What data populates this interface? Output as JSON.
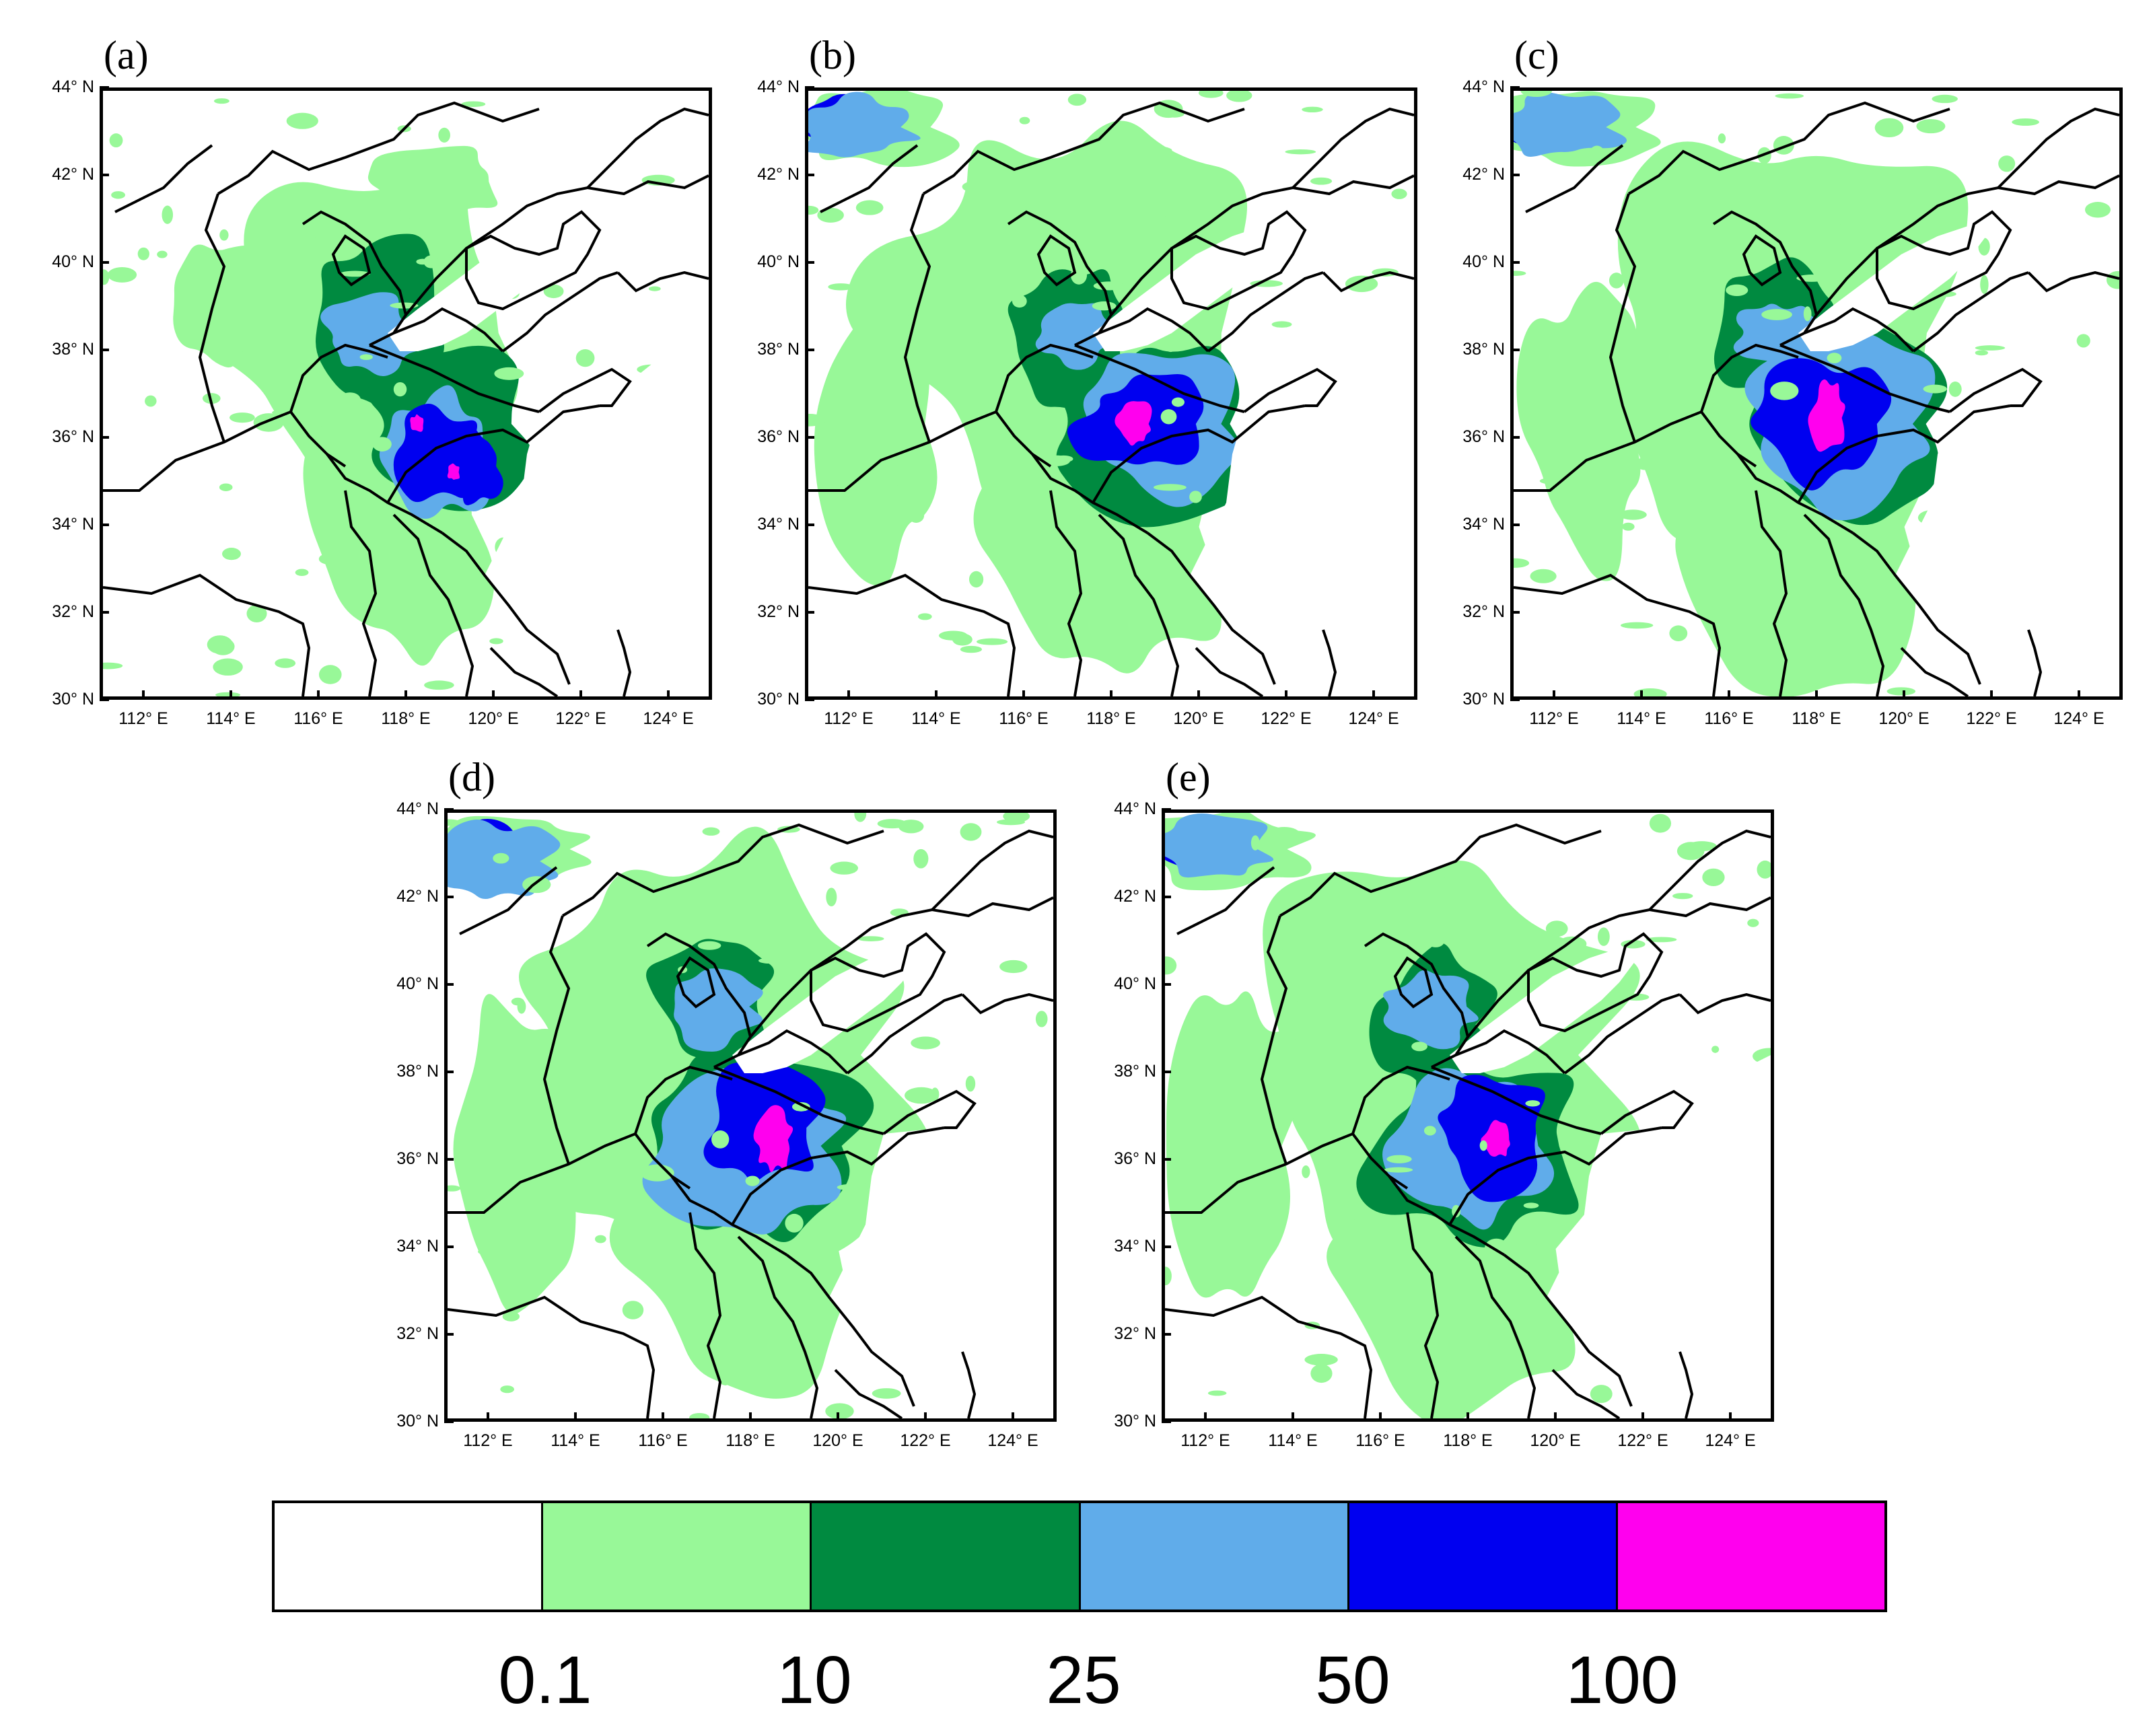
{
  "panels": [
    {
      "label": "(a)"
    },
    {
      "label": "(b)"
    },
    {
      "label": "(c)"
    },
    {
      "label": "(d)"
    },
    {
      "label": "(e)"
    }
  ],
  "map": {
    "lat_ticks": [
      "44° N",
      "42° N",
      "40° N",
      "38° N",
      "36° N",
      "34° N",
      "32° N",
      "30° N"
    ],
    "lon_ticks": [
      "112° E",
      "114° E",
      "116° E",
      "118° E",
      "120° E",
      "122° E",
      "124° E"
    ],
    "lat_range": [
      30,
      44
    ],
    "lon_range": [
      111,
      125
    ]
  },
  "legend": {
    "colors": [
      "#ffffff",
      "#98f898",
      "#008a40",
      "#60acea",
      "#0000f0",
      "#ff00ee"
    ],
    "labels": [
      "0.1",
      "10",
      "25",
      "50",
      "100"
    ],
    "color_names": [
      "white",
      "light-green",
      "dark-green",
      "light-blue",
      "blue",
      "magenta"
    ]
  }
}
